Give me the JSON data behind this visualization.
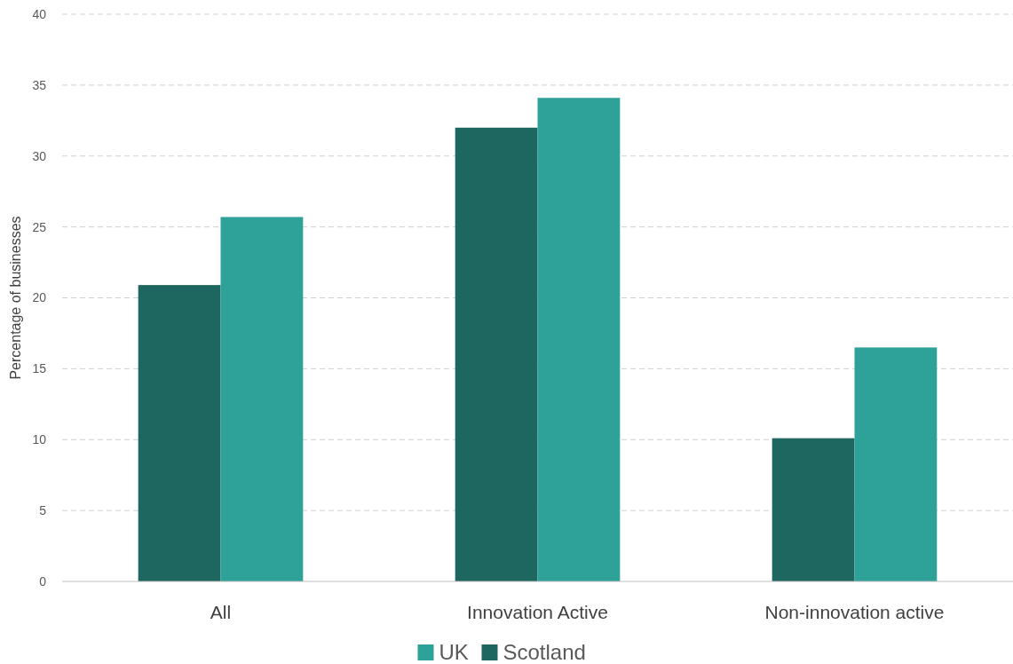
{
  "chart_data": {
    "type": "bar",
    "ylabel": "Percentage of businesses",
    "categories": [
      "All",
      "Innovation Active",
      "Non-innovation active"
    ],
    "series": [
      {
        "name": "Scotland",
        "color": "#1e6660",
        "values": [
          20.9,
          32.0,
          10.1
        ]
      },
      {
        "name": "UK",
        "color": "#2ea198",
        "values": [
          25.7,
          34.1,
          16.5
        ]
      }
    ],
    "ylim": [
      0,
      40
    ],
    "yticks": [
      0,
      5,
      10,
      15,
      20,
      25,
      30,
      35,
      40
    ],
    "grid": "y",
    "legend": "bottom"
  }
}
